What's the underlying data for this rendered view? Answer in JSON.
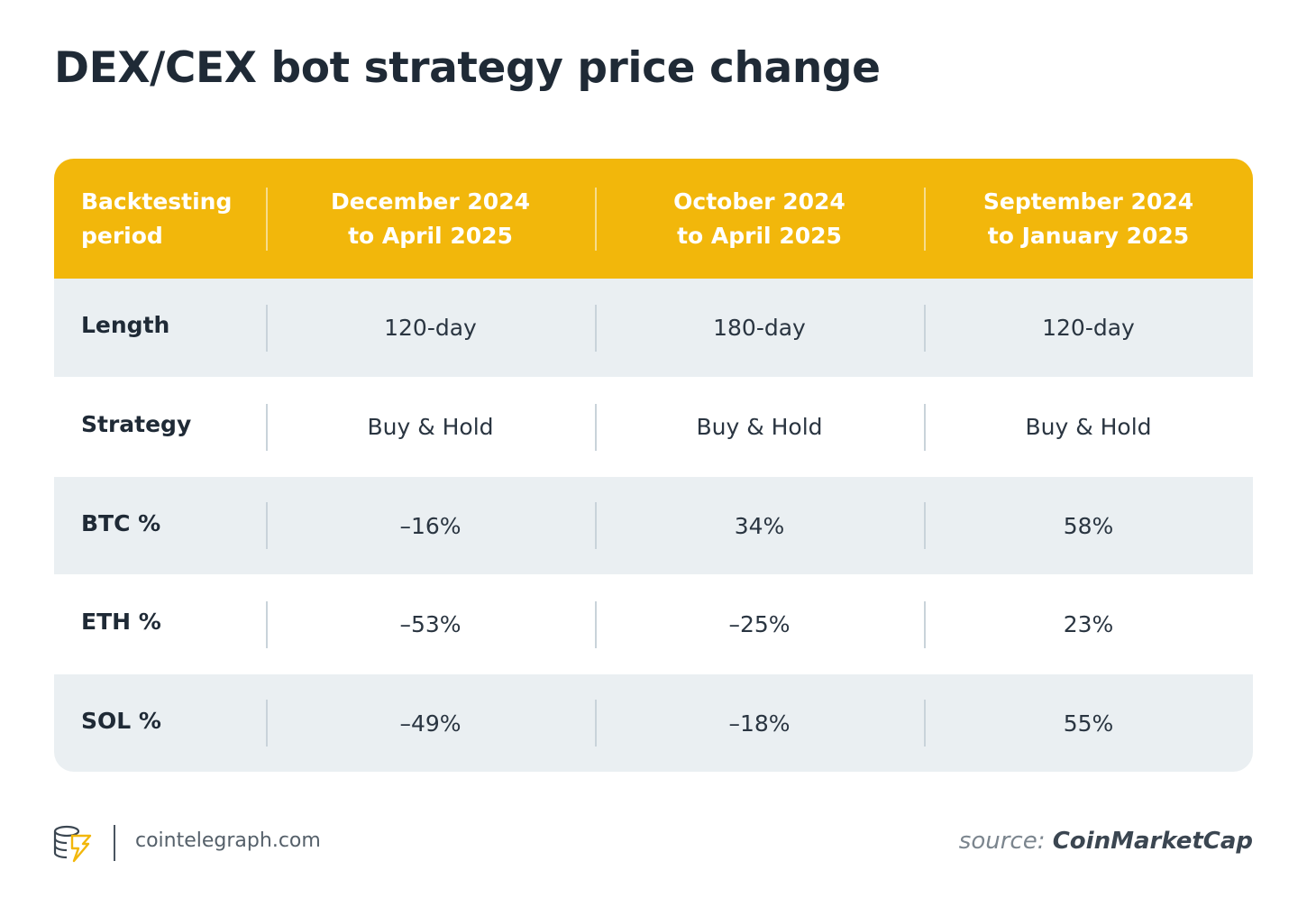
{
  "title": "DEX/CEX bot strategy price change",
  "table": {
    "header": [
      "Backtesting\nperiod",
      "December 2024\nto April 2025",
      "October 2024\nto April 2025",
      "September 2024\nto January 2025"
    ],
    "rows": [
      {
        "label": "Length",
        "values": [
          "120-day",
          "180-day",
          "120-day"
        ]
      },
      {
        "label": "Strategy",
        "values": [
          "Buy & Hold",
          "Buy & Hold",
          "Buy & Hold"
        ]
      },
      {
        "label": "BTC %",
        "values": [
          "–16%",
          "34%",
          "58%"
        ]
      },
      {
        "label": "ETH %",
        "values": [
          "–53%",
          "–25%",
          "23%"
        ]
      },
      {
        "label": "SOL %",
        "values": [
          "–49%",
          "–18%",
          "55%"
        ]
      }
    ]
  },
  "footer": {
    "site": "cointelegraph.com",
    "source_prefix": "source:",
    "source_name": "CoinMarketCap",
    "logo_icon": "cointelegraph-logo-icon"
  },
  "colors": {
    "header_bg": "#f2b70b",
    "row_alt_bg": "#eaeff2",
    "text": "#1f2a36"
  },
  "chart_data": {
    "type": "table",
    "title": "DEX/CEX bot strategy price change",
    "columns": [
      "Backtesting period",
      "December 2024 to April 2025",
      "October 2024 to April 2025",
      "September 2024 to January 2025"
    ],
    "rows": [
      [
        "Length",
        "120-day",
        "180-day",
        "120-day"
      ],
      [
        "Strategy",
        "Buy & Hold",
        "Buy & Hold",
        "Buy & Hold"
      ],
      [
        "BTC %",
        "–16%",
        "34%",
        "58%"
      ],
      [
        "ETH %",
        "–53%",
        "–25%",
        "23%"
      ],
      [
        "SOL %",
        "–49%",
        "–18%",
        "55%"
      ]
    ],
    "series": [
      {
        "name": "BTC %",
        "values": [
          -16,
          34,
          58
        ]
      },
      {
        "name": "ETH %",
        "values": [
          -53,
          -25,
          23
        ]
      },
      {
        "name": "SOL %",
        "values": [
          -49,
          -18,
          55
        ]
      }
    ]
  }
}
